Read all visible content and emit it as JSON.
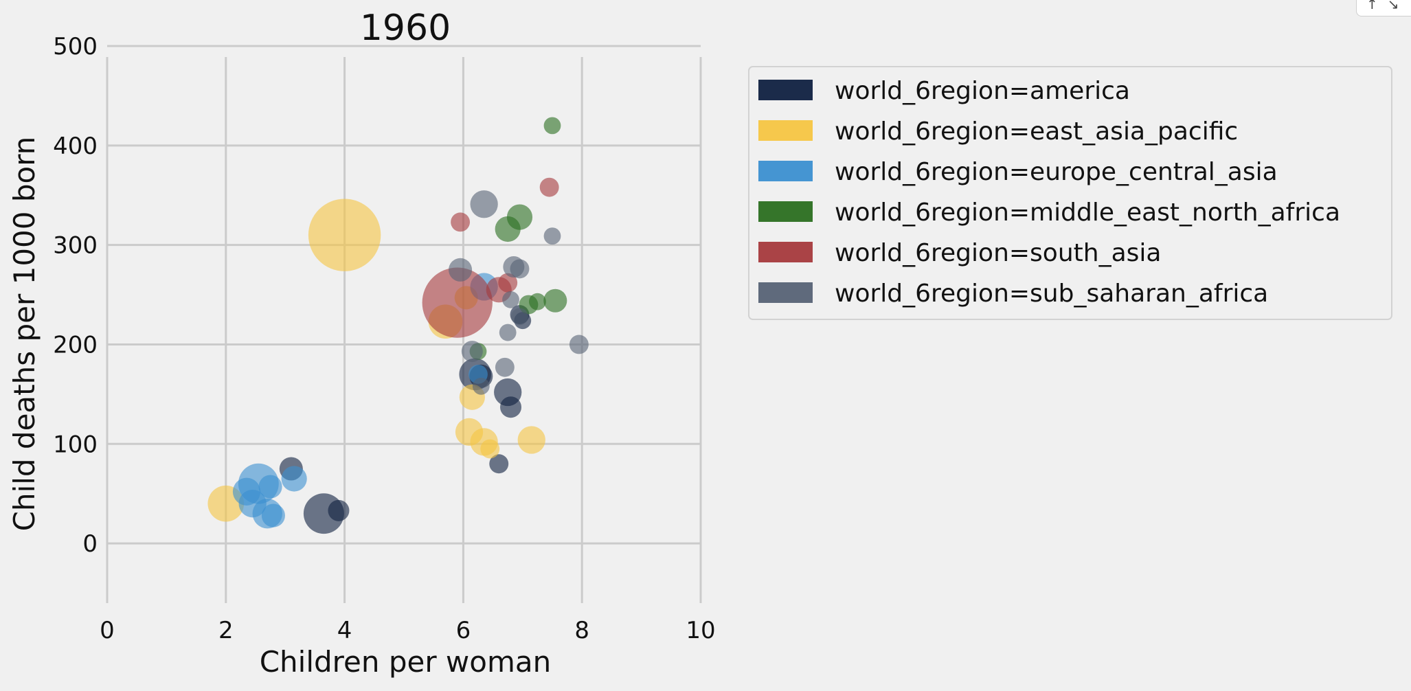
{
  "widget_controls": {
    "pan_icon": "↑",
    "collapse_icon": "↘"
  },
  "chart_data": {
    "type": "scatter",
    "title": "1960",
    "xlabel": "Children per woman",
    "ylabel": "Child deaths per 1000 born",
    "xlim": [
      0,
      10
    ],
    "ylim": [
      -60,
      500
    ],
    "xticks": [
      0,
      2,
      4,
      6,
      8,
      10
    ],
    "yticks": [
      0,
      100,
      200,
      300,
      400,
      500
    ],
    "grid": true,
    "legend_position": "upper-right, outside plot",
    "marker_alpha": 0.6,
    "series": [
      {
        "name": "world_6region=america",
        "color": "#0f2040",
        "points": [
          {
            "x": 3.1,
            "y": 75,
            "s": 11
          },
          {
            "x": 3.65,
            "y": 30,
            "s": 19
          },
          {
            "x": 3.9,
            "y": 33,
            "s": 10
          },
          {
            "x": 6.2,
            "y": 170,
            "s": 15
          },
          {
            "x": 6.3,
            "y": 168,
            "s": 11
          },
          {
            "x": 6.75,
            "y": 152,
            "s": 13
          },
          {
            "x": 6.8,
            "y": 137,
            "s": 10
          },
          {
            "x": 6.6,
            "y": 80,
            "s": 9
          },
          {
            "x": 6.95,
            "y": 230,
            "s": 9
          },
          {
            "x": 7.0,
            "y": 224,
            "s": 8
          }
        ]
      },
      {
        "name": "world_6region=east_asia_pacific",
        "color": "#f5c542",
        "points": [
          {
            "x": 4.0,
            "y": 310,
            "s": 34
          },
          {
            "x": 2.0,
            "y": 40,
            "s": 17
          },
          {
            "x": 5.7,
            "y": 223,
            "s": 16
          },
          {
            "x": 6.05,
            "y": 247,
            "s": 11
          },
          {
            "x": 6.15,
            "y": 147,
            "s": 12
          },
          {
            "x": 6.1,
            "y": 112,
            "s": 13
          },
          {
            "x": 6.35,
            "y": 102,
            "s": 13
          },
          {
            "x": 6.45,
            "y": 95,
            "s": 9
          },
          {
            "x": 7.15,
            "y": 104,
            "s": 13
          }
        ]
      },
      {
        "name": "world_6region=europe_central_asia",
        "color": "#3b8fd0",
        "points": [
          {
            "x": 2.55,
            "y": 60,
            "s": 19
          },
          {
            "x": 2.35,
            "y": 52,
            "s": 13
          },
          {
            "x": 2.45,
            "y": 40,
            "s": 13
          },
          {
            "x": 2.75,
            "y": 57,
            "s": 11
          },
          {
            "x": 2.7,
            "y": 30,
            "s": 14
          },
          {
            "x": 2.8,
            "y": 28,
            "s": 11
          },
          {
            "x": 3.15,
            "y": 65,
            "s": 12
          },
          {
            "x": 6.35,
            "y": 258,
            "s": 13
          },
          {
            "x": 6.25,
            "y": 170,
            "s": 9
          }
        ]
      },
      {
        "name": "world_6region=middle_east_north_africa",
        "color": "#2a6e1f",
        "points": [
          {
            "x": 7.5,
            "y": 420,
            "s": 8
          },
          {
            "x": 6.95,
            "y": 328,
            "s": 12
          },
          {
            "x": 6.75,
            "y": 316,
            "s": 12
          },
          {
            "x": 7.55,
            "y": 244,
            "s": 11
          },
          {
            "x": 7.1,
            "y": 240,
            "s": 9
          },
          {
            "x": 7.25,
            "y": 243,
            "s": 8
          },
          {
            "x": 6.25,
            "y": 193,
            "s": 8
          }
        ]
      },
      {
        "name": "world_6region=south_asia",
        "color": "#a5393c",
        "points": [
          {
            "x": 5.9,
            "y": 242,
            "s": 33
          },
          {
            "x": 6.6,
            "y": 255,
            "s": 12
          },
          {
            "x": 6.75,
            "y": 262,
            "s": 9
          },
          {
            "x": 7.45,
            "y": 358,
            "s": 9
          },
          {
            "x": 5.95,
            "y": 323,
            "s": 9
          }
        ]
      },
      {
        "name": "world_6region=sub_saharan_africa",
        "color": "#566275",
        "points": [
          {
            "x": 6.35,
            "y": 341,
            "s": 13
          },
          {
            "x": 5.95,
            "y": 275,
            "s": 11
          },
          {
            "x": 6.85,
            "y": 278,
            "s": 10
          },
          {
            "x": 6.95,
            "y": 276,
            "s": 9
          },
          {
            "x": 7.5,
            "y": 309,
            "s": 8
          },
          {
            "x": 6.8,
            "y": 245,
            "s": 8
          },
          {
            "x": 6.75,
            "y": 212,
            "s": 8
          },
          {
            "x": 7.95,
            "y": 200,
            "s": 9
          },
          {
            "x": 6.15,
            "y": 193,
            "s": 10
          },
          {
            "x": 6.7,
            "y": 177,
            "s": 9
          },
          {
            "x": 6.95,
            "y": 228,
            "s": 8
          },
          {
            "x": 6.3,
            "y": 158,
            "s": 8
          }
        ]
      }
    ]
  }
}
